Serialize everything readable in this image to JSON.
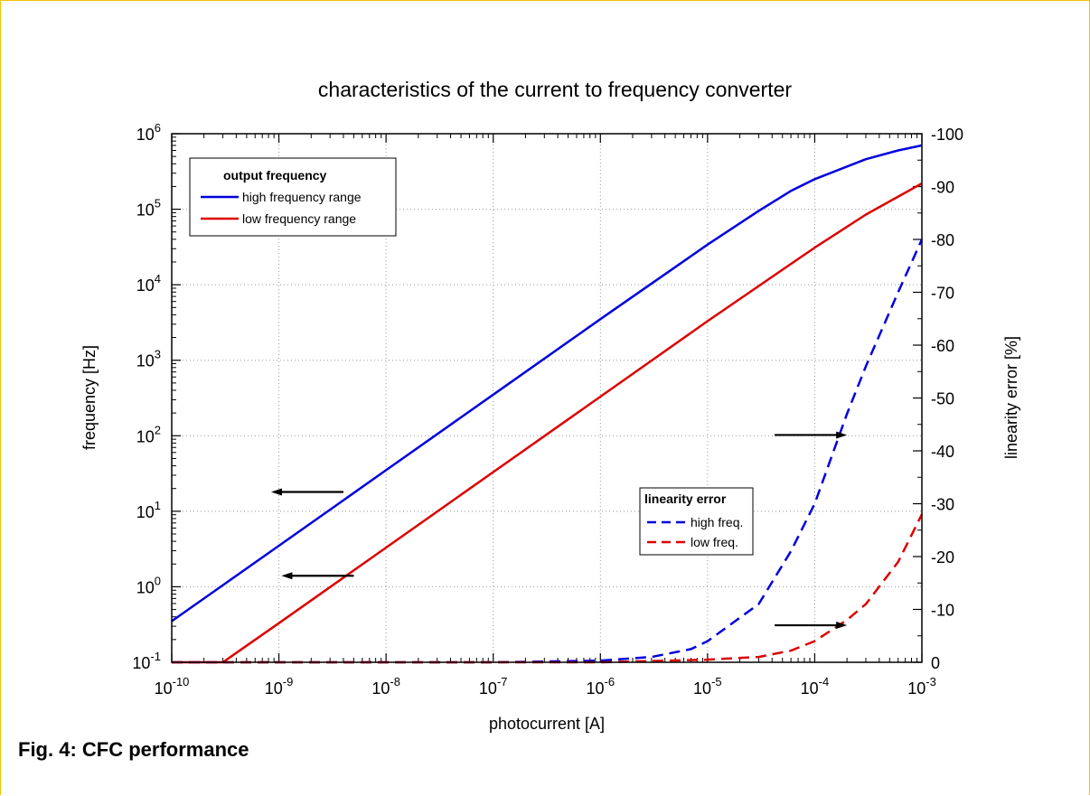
{
  "caption": "Fig. 4: CFC performance",
  "chart_data": {
    "type": "line",
    "title": "characteristics of the current to frequency converter",
    "xlabel": "photocurrent [A]",
    "ylabel": "frequency [Hz]",
    "ylabel_right": "linearity error [%]",
    "xscale": "log",
    "yscale": "log",
    "xlim": [
      1e-10,
      0.001
    ],
    "ylim": [
      0.1,
      1000000
    ],
    "ylim_right": [
      0,
      -100
    ],
    "grid": true,
    "x_ticks": [
      {
        "base": "10",
        "exp": "-10"
      },
      {
        "base": "10",
        "exp": "-9"
      },
      {
        "base": "10",
        "exp": "-8"
      },
      {
        "base": "10",
        "exp": "-7"
      },
      {
        "base": "10",
        "exp": "-6"
      },
      {
        "base": "10",
        "exp": "-5"
      },
      {
        "base": "10",
        "exp": "-4"
      },
      {
        "base": "10",
        "exp": "-3"
      }
    ],
    "y_ticks": [
      {
        "base": "10",
        "exp": "-1"
      },
      {
        "base": "10",
        "exp": "0"
      },
      {
        "base": "10",
        "exp": "1"
      },
      {
        "base": "10",
        "exp": "2"
      },
      {
        "base": "10",
        "exp": "3"
      },
      {
        "base": "10",
        "exp": "4"
      },
      {
        "base": "10",
        "exp": "5"
      },
      {
        "base": "10",
        "exp": "6"
      }
    ],
    "y_right_ticks": [
      "0",
      "-10",
      "-20",
      "-30",
      "-40",
      "-50",
      "-60",
      "-70",
      "-80",
      "-90",
      "-100"
    ],
    "legend_frequency": {
      "title": "output frequency",
      "placement": "top-left",
      "entries": [
        "high frequency range",
        "low frequency range"
      ]
    },
    "legend_error": {
      "title": "linearity error",
      "placement": "center-right",
      "entries": [
        "high freq.",
        "low freq."
      ]
    },
    "series": [
      {
        "name": "high frequency range",
        "axis": "left",
        "style": "solid",
        "color": "#0000dd",
        "x": [
          1e-10,
          1e-09,
          1e-08,
          1e-07,
          1e-06,
          1e-05,
          3e-05,
          6e-05,
          0.0001,
          0.0003,
          0.0006,
          0.001
        ],
        "y": [
          0.35,
          3.5,
          35,
          350,
          3500,
          34000,
          95000,
          175000,
          250000,
          460000,
          600000,
          700000
        ]
      },
      {
        "name": "low frequency range",
        "axis": "left",
        "style": "solid",
        "color": "#dd0000",
        "x": [
          1e-10,
          3e-10,
          1e-09,
          1e-08,
          1e-07,
          1e-06,
          1e-05,
          0.0001,
          0.0003,
          0.001
        ],
        "y": [
          0.1,
          0.1,
          0.33,
          3.3,
          33,
          330,
          3300,
          31000,
          85000,
          220000
        ]
      },
      {
        "name": "high freq.",
        "axis": "right",
        "style": "dashed",
        "color": "#0000dd",
        "x": [
          1e-10,
          1e-07,
          1e-06,
          3e-06,
          7e-06,
          1e-05,
          3e-05,
          6e-05,
          0.0001,
          0.0002,
          0.0003,
          0.0006,
          0.001
        ],
        "y": [
          0,
          0,
          -0.3,
          -1,
          -2.5,
          -4,
          -11,
          -21,
          -30,
          -47,
          -56,
          -70,
          -80
        ]
      },
      {
        "name": "low freq.",
        "axis": "right",
        "style": "dashed",
        "color": "#dd0000",
        "x": [
          1e-10,
          1e-06,
          1e-05,
          3e-05,
          6e-05,
          0.0001,
          0.0002,
          0.0003,
          0.0006,
          0.001
        ],
        "y": [
          0,
          0,
          -0.5,
          -1,
          -2.2,
          -4,
          -8,
          -11,
          -19,
          -28
        ]
      }
    ],
    "annotation_arrows": [
      {
        "direction": "left",
        "at_x": 4e-09,
        "at_y": 18,
        "refers_to": "left"
      },
      {
        "direction": "left",
        "at_x": 5e-09,
        "at_y": 1.4,
        "refers_to": "left"
      },
      {
        "direction": "right",
        "at_x": 0.0002,
        "at_y": -43,
        "refers_to": "right"
      },
      {
        "direction": "right",
        "at_x": 0.0002,
        "at_y": -7,
        "refers_to": "right"
      }
    ]
  }
}
